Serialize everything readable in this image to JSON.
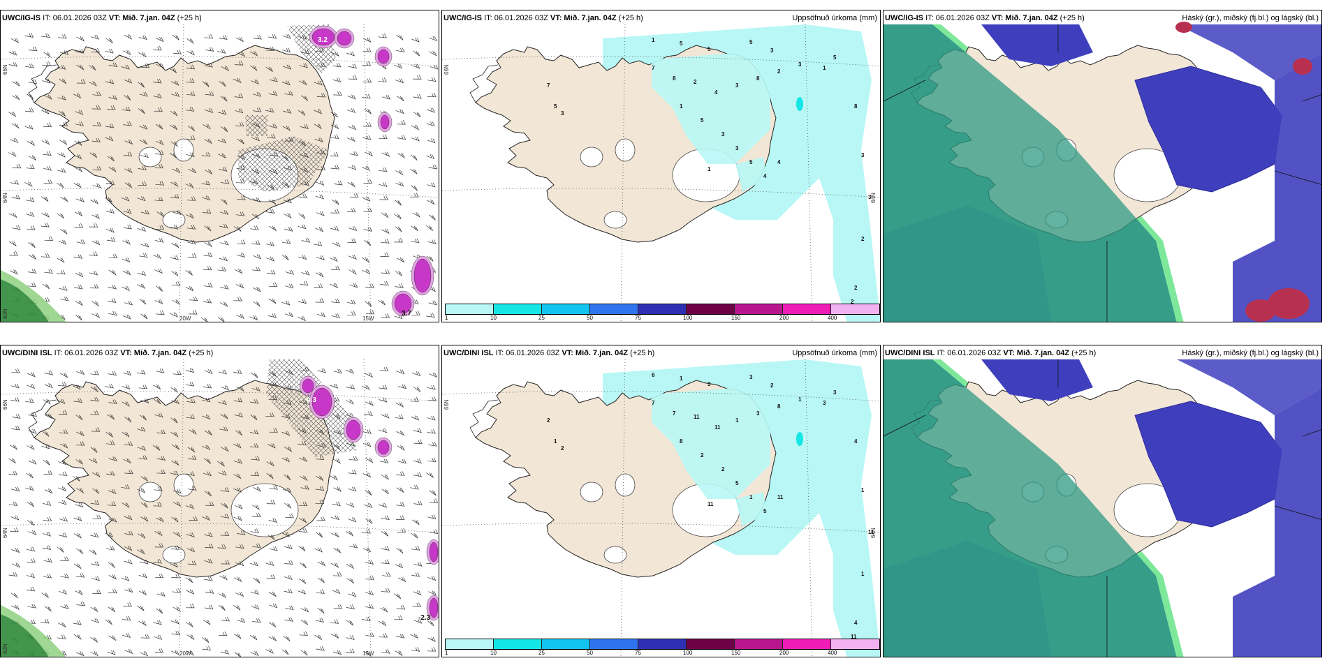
{
  "panels": [
    {
      "id": "p1",
      "model": "UWC/IG-IS",
      "it": "IT: 06.01.2026 03Z",
      "vt_label": "VT:",
      "vt_value": "Mið. 7.jan. 04Z",
      "lead": "(+25 h)",
      "right_title": "",
      "type": "wind"
    },
    {
      "id": "p2",
      "model": "UWC/IG-IS",
      "it": "IT: 06.01.2026 03Z",
      "vt_label": "VT:",
      "vt_value": "Mið. 7.jan. 04Z",
      "lead": "(+25 h)",
      "right_title": "Uppsöfnuð úrkoma (mm)",
      "type": "precip"
    },
    {
      "id": "p3",
      "model": "UWC/IG-IS",
      "it": "IT: 06.01.2026 03Z",
      "vt_label": "VT:",
      "vt_value": "Mið. 7.jan. 04Z",
      "lead": "(+25 h)",
      "right_title": "Háský (gr.), miðský (fj.bl.) og lágský (bl.)",
      "type": "cloud"
    },
    {
      "id": "p4",
      "model": "UWC/DINI ISL",
      "it": "IT: 06.01.2026 03Z",
      "vt_label": "VT:",
      "vt_value": "Mið. 7.jan. 04Z",
      "lead": "(+25 h)",
      "right_title": "",
      "type": "wind"
    },
    {
      "id": "p5",
      "model": "UWC/DINI ISL",
      "it": "IT: 06.01.2026 03Z",
      "vt_label": "VT:",
      "vt_value": "Mið. 7.jan. 04Z",
      "lead": "(+25 h)",
      "right_title": "Uppsöfnuð úrkoma (mm)",
      "type": "precip"
    },
    {
      "id": "p6",
      "model": "UWC/DINI ISL",
      "it": "IT: 06.01.2026 03Z",
      "vt_label": "VT:",
      "vt_value": "Mið. 7.jan. 04Z",
      "lead": "(+25 h)",
      "right_title": "Háský (gr.), miðský (fj.bl.) og lágský (bl.)",
      "type": "cloud"
    }
  ],
  "wind_map": {
    "lon_labels": [
      "20W",
      "15W"
    ],
    "lat_labels": [
      "66N",
      "64N"
    ],
    "extra_lat": "62N",
    "p1_values": [
      "3.2",
      "3.7"
    ],
    "p4_values": [
      "0.3",
      "-2.3"
    ]
  },
  "precip_colorbar": {
    "ticks": [
      "1",
      "10",
      "25",
      "50",
      "75",
      "100",
      "150",
      "200",
      "400"
    ],
    "colors": [
      "#b8f7f5",
      "#14e6e6",
      "#12c2ef",
      "#2f74ee",
      "#2f2fb4",
      "#6e0048",
      "#b8168e",
      "#f01cb6",
      "#f2b2f2"
    ]
  },
  "colors": {
    "land": "#f2e6d6",
    "precip_light": "#b8f7f5",
    "cloud_high": "#2f9a84",
    "cloud_mid": "#3f3fbe",
    "cloud_low": "#b83050",
    "snow": "#c838c8"
  }
}
